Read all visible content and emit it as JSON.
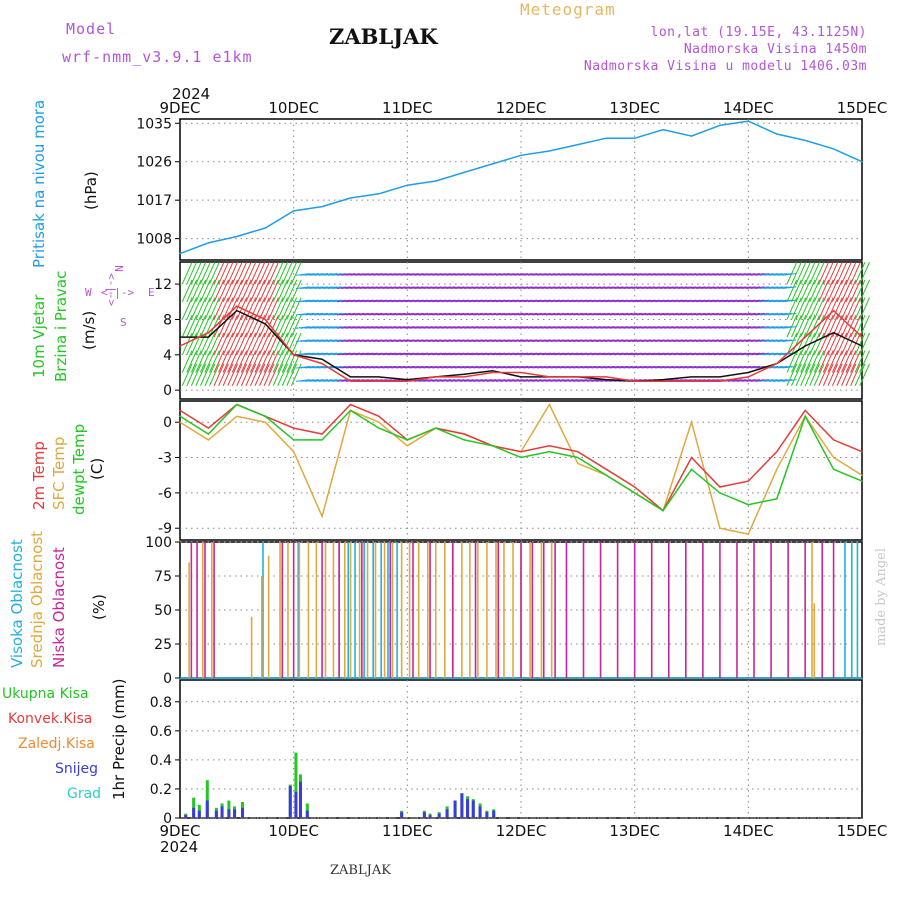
{
  "header": {
    "model_label": "Model",
    "model_name": "wrf-nmm_v3.9.1  e1km",
    "chart_title": "Meteogram",
    "station": "ZABLJAK",
    "coords": "lon,lat (19.15E, 43.1125N)",
    "altitude": "Nadmorska Visina 1450m",
    "model_altitude": "Nadmorska Visina u modelu 1406.03m",
    "year": "2024"
  },
  "footer": {
    "station": "ZABLJAK",
    "credit": "made by Angel",
    "year": "2024"
  },
  "colors": {
    "pressure": "#1f9ee8",
    "t2m": "#e83a3a",
    "sfc": "#e0a840",
    "dewpt": "#23c623",
    "high_cloud": "#22b0e0",
    "mid_cloud": "#e0a840",
    "low_cloud": "#c8259a",
    "total_precip": "#23c623",
    "conv": "#e83a3a",
    "frozen": "#f08a30",
    "snow": "#3b3bdc",
    "grad": "#2ad0c4",
    "wind_calm": "#8f2fd0",
    "wind_light": "#1f9ee8",
    "wind_strong": "#23c623",
    "wind_max": "#e83a3a"
  },
  "time_axis": {
    "labels": [
      "9DEC",
      "10DEC",
      "11DEC",
      "12DEC",
      "13DEC",
      "14DEC",
      "15DEC"
    ]
  },
  "panels": {
    "pressure": {
      "label": "Pritisak na nivou mora",
      "unit": "(hPa)",
      "ticks": [
        "1008",
        "1017",
        "1026",
        "1035"
      ]
    },
    "wind": {
      "label1": "10m Vjetar",
      "label2": "Brzina i Pravac",
      "unit": "(m/s)",
      "ticks": [
        "0",
        "4",
        "8",
        "12"
      ],
      "compass_n": "N",
      "compass_w": "W",
      "compass_e": "E",
      "compass_s": "S",
      "compass_h": "<-|->",
      "compass_v": "<-|->"
    },
    "temp": {
      "label_t2m": "2m Temp",
      "label_sfc": "SFC Temp",
      "label_dew": "dewpt Temp",
      "unit": "(C)",
      "ticks": [
        "0",
        "-3",
        "-6",
        "-9"
      ]
    },
    "cloud": {
      "label_high": "Visoka Oblacnost",
      "label_mid": "Srednja Oblacnost",
      "label_low": "Niska Oblacnost",
      "unit": "(%)",
      "ticks": [
        "0",
        "25",
        "50",
        "75",
        "100"
      ]
    },
    "precip": {
      "legend": [
        "Ukupna Kisa",
        "Konvek.Kisa",
        "Zaledj.Kisa",
        "Snijeg",
        "Grad"
      ],
      "unit": "1hr Precip (mm)",
      "ticks": [
        "0",
        "0.2",
        "0.4",
        "0.6",
        "0.8"
      ]
    }
  },
  "chart_data": [
    {
      "type": "line",
      "title": "Pritisak na nivou mora",
      "ylabel": "(hPa)",
      "ylim": [
        1003,
        1036
      ],
      "x": [
        0,
        0.25,
        0.5,
        0.75,
        1,
        1.25,
        1.5,
        1.75,
        2,
        2.25,
        2.5,
        2.75,
        3,
        3.25,
        3.5,
        3.75,
        4,
        4.25,
        4.5,
        4.75,
        5,
        5.25,
        5.5,
        5.75,
        6
      ],
      "series": [
        {
          "values": [
            1004.5,
            1007,
            1008.5,
            1010.5,
            1014.5,
            1015.5,
            1017.5,
            1018.5,
            1020.5,
            1021.5,
            1023.5,
            1025.5,
            1027.5,
            1028.5,
            1030,
            1031.5,
            1031.5,
            1033.5,
            1032,
            1034.5,
            1035.5,
            1032.5,
            1031,
            1029,
            1026
          ]
        }
      ]
    },
    {
      "type": "line",
      "title": "10m Vjetar Brzina i Pravac",
      "ylabel": "(m/s)",
      "ylim": [
        -1,
        14.5
      ],
      "x": [
        0,
        0.25,
        0.5,
        0.75,
        1,
        1.25,
        1.5,
        1.75,
        2,
        2.25,
        2.5,
        2.75,
        3,
        3.25,
        3.5,
        3.75,
        4,
        4.25,
        4.5,
        4.75,
        5,
        5.25,
        5.5,
        5.75,
        6
      ],
      "series": [
        {
          "values": [
            6,
            6,
            9,
            7.5,
            4,
            3.5,
            1.5,
            1.5,
            1.2,
            1.5,
            1.8,
            2.2,
            1.5,
            1.5,
            1.5,
            1.2,
            1.0,
            1.2,
            1.5,
            1.5,
            2,
            3,
            5,
            6.5,
            5
          ]
        },
        {
          "values": [
            5,
            6.5,
            9.5,
            8,
            4,
            3,
            1,
            1,
            1,
            1.5,
            1.5,
            2,
            2,
            1.5,
            1.5,
            1.5,
            1,
            1,
            1,
            1,
            1.5,
            3,
            6,
            9,
            6
          ]
        }
      ]
    },
    {
      "type": "line",
      "title": "2m Temp / SFC Temp / dewpt Temp",
      "ylabel": "(C)",
      "ylim": [
        -10,
        1.8
      ],
      "x": [
        0,
        0.25,
        0.5,
        0.75,
        1,
        1.25,
        1.5,
        1.75,
        2,
        2.25,
        2.5,
        2.75,
        3,
        3.25,
        3.5,
        3.75,
        4,
        4.25,
        4.5,
        4.75,
        5,
        5.25,
        5.5,
        5.75,
        6
      ],
      "series": [
        {
          "name": "2m Temp",
          "values": [
            1,
            -0.5,
            1.5,
            0.5,
            -0.5,
            -1,
            1.5,
            0.5,
            -1.5,
            -0.5,
            -1,
            -2,
            -2.5,
            -2,
            -2.5,
            -4,
            -5.5,
            -7.5,
            -3,
            -5.5,
            -5,
            -2.5,
            1,
            -1.5,
            -2.5
          ]
        },
        {
          "name": "SFC Temp",
          "values": [
            0,
            -1.5,
            0.5,
            0,
            -2.5,
            -8,
            1,
            0,
            -2,
            -0.5,
            -1,
            -2,
            -2.5,
            1.5,
            -3.5,
            -4.5,
            -6,
            -7.5,
            0,
            -9,
            -9.5,
            -4,
            0.5,
            -3,
            -4.5
          ]
        },
        {
          "name": "dewpt Temp",
          "values": [
            0.5,
            -1,
            1.5,
            0.5,
            -1.5,
            -1.5,
            1,
            -0.5,
            -1.5,
            -0.5,
            -1.5,
            -2,
            -3,
            -2.5,
            -3,
            -4.5,
            -6,
            -7.5,
            -4,
            -6,
            -7,
            -6.5,
            0.5,
            -4,
            -5
          ]
        }
      ]
    },
    {
      "type": "bar",
      "title": "Visoka / Srednja / Niska Oblacnost",
      "ylabel": "(%)",
      "ylim": [
        0,
        100
      ],
      "series": [
        {
          "name": "Visoka Oblacnost",
          "x": [
            0.73,
            1.04,
            1.48,
            1.54,
            1.62,
            1.7,
            1.77,
            1.83,
            1.91,
            5.85,
            5.91,
            5.96
          ],
          "values": [
            100,
            100,
            100,
            100,
            100,
            100,
            100,
            100,
            100,
            100,
            100,
            100
          ]
        },
        {
          "name": "Srednja Oblacnost",
          "x": [
            0.08,
            0.2,
            0.28,
            0.63,
            0.72,
            0.78,
            0.88,
            0.95,
            1.05,
            1.13,
            1.2,
            1.28,
            1.35,
            1.4,
            1.45,
            1.5,
            1.58,
            1.65,
            1.72,
            1.8,
            1.87,
            1.95,
            2.02,
            2.1,
            2.18,
            2.25,
            2.33,
            2.4,
            2.48,
            2.55,
            2.62,
            2.7,
            2.78,
            2.85,
            2.93,
            3.0,
            3.08,
            3.18,
            3.27,
            5.56,
            5.58
          ],
          "values": [
            85,
            100,
            100,
            45,
            75,
            90,
            100,
            100,
            100,
            100,
            100,
            100,
            100,
            100,
            100,
            100,
            100,
            100,
            100,
            100,
            100,
            100,
            100,
            100,
            100,
            100,
            100,
            100,
            100,
            100,
            100,
            100,
            100,
            100,
            100,
            100,
            100,
            100,
            100,
            100,
            55
          ]
        },
        {
          "name": "Niska Oblacnost",
          "x": [
            0.1,
            0.15,
            0.22,
            0.3,
            0.9,
            1.0,
            1.25,
            1.4,
            1.6,
            1.85,
            2.05,
            2.2,
            2.4,
            2.6,
            2.8,
            3.0,
            3.1,
            3.2,
            3.3,
            3.4,
            3.55,
            3.7,
            3.85,
            4.0,
            4.15,
            4.3,
            4.45,
            4.6,
            4.75,
            4.9,
            5.05,
            5.2,
            5.35,
            5.5,
            5.65,
            5.75
          ],
          "values": [
            100,
            100,
            100,
            100,
            100,
            100,
            100,
            100,
            100,
            100,
            100,
            100,
            100,
            100,
            100,
            100,
            100,
            100,
            100,
            100,
            100,
            100,
            100,
            100,
            100,
            100,
            100,
            100,
            100,
            100,
            100,
            100,
            100,
            100,
            100,
            100
          ]
        }
      ]
    },
    {
      "type": "bar",
      "title": "1hr Precip",
      "ylabel": "1hr Precip (mm)",
      "ylim": [
        0,
        0.95
      ],
      "x": [
        0.05,
        0.12,
        0.17,
        0.24,
        0.32,
        0.37,
        0.43,
        0.48,
        0.55,
        0.97,
        1.02,
        1.06,
        1.12,
        1.95,
        2.15,
        2.2,
        2.28,
        2.35,
        2.42,
        2.48,
        2.53,
        2.58,
        2.64,
        2.7,
        2.76
      ],
      "series": [
        {
          "name": "Ukupna Kisa",
          "values": [
            0.03,
            0.14,
            0.09,
            0.26,
            0.07,
            0.1,
            0.12,
            0.08,
            0.11,
            0.23,
            0.45,
            0.3,
            0.1,
            0.05,
            0.05,
            0.03,
            0.04,
            0.08,
            0.12,
            0.17,
            0.15,
            0.13,
            0.1,
            0.05,
            0.06
          ]
        },
        {
          "name": "Snijeg",
          "values": [
            0.02,
            0.07,
            0.05,
            0.12,
            0.05,
            0.08,
            0.06,
            0.06,
            0.07,
            0.22,
            0.18,
            0.25,
            0.05,
            0.04,
            0.04,
            0.02,
            0.03,
            0.06,
            0.12,
            0.17,
            0.13,
            0.12,
            0.08,
            0.04,
            0.05
          ]
        }
      ]
    },
    {
      "type": "scatter",
      "title": "10m Vjetar Pravac",
      "x": [
        0,
        0.25,
        0.5,
        0.75,
        1,
        1.25,
        1.5,
        1.75,
        2,
        2.25,
        2.5,
        2.75,
        3,
        3.25,
        3.5,
        3.75,
        4,
        4.25,
        4.5,
        4.75,
        5,
        5.25,
        5.5,
        5.75,
        6
      ],
      "series": [
        {
          "values": [
            6,
            6,
            9,
            7.5,
            4,
            3.5,
            1.5,
            1.5,
            1.2,
            1.5,
            1.8,
            2.2,
            1.5,
            1.5,
            1.5,
            1.2,
            1.0,
            1.2,
            1.5,
            1.5,
            2,
            3,
            5,
            6.5,
            5
          ]
        }
      ]
    }
  ]
}
